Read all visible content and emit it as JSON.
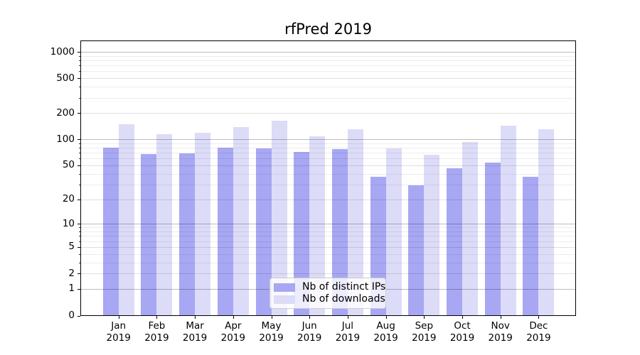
{
  "title": "rfPred 2019",
  "colors": {
    "distinct_ips": "#a7a7f3",
    "downloads": "#dcdcf8",
    "grid_major": "rgba(0,0,0,0.26)",
    "grid_labeled_minor": "rgba(0,0,0,0.12)",
    "grid_minor": "rgba(0,0,0,0.07)",
    "axis": "#000000",
    "legend_border": "#cccccc"
  },
  "legend": {
    "items": [
      "Nb of distinct IPs",
      "Nb of downloads"
    ]
  },
  "chart_data": {
    "type": "bar",
    "title": "rfPred 2019",
    "categories": [
      "Jan",
      "Feb",
      "Mar",
      "Apr",
      "May",
      "Jun",
      "Jul",
      "Aug",
      "Sep",
      "Oct",
      "Nov",
      "Dec"
    ],
    "category_year": "2019",
    "series": [
      {
        "name": "Nb of distinct IPs",
        "values": [
          80,
          68,
          69,
          80,
          78,
          71,
          77,
          37,
          29,
          46,
          54,
          37
        ]
      },
      {
        "name": "Nb of downloads",
        "values": [
          150,
          115,
          118,
          139,
          162,
          108,
          130,
          78,
          66,
          93,
          142,
          130
        ]
      }
    ],
    "xlabel": "",
    "ylabel": "",
    "y_scale": "symlog-log1p",
    "y_ticks": [
      0,
      1,
      2,
      5,
      10,
      20,
      50,
      100,
      200,
      500,
      1000
    ],
    "y_minor_ticks": [
      3,
      4,
      6,
      7,
      8,
      9,
      30,
      40,
      60,
      70,
      80,
      90,
      300,
      400,
      600,
      700,
      800,
      900
    ],
    "ylim": [
      0,
      1350
    ],
    "grid": true,
    "grid_above_bars": true,
    "legend_position": "lower center"
  }
}
